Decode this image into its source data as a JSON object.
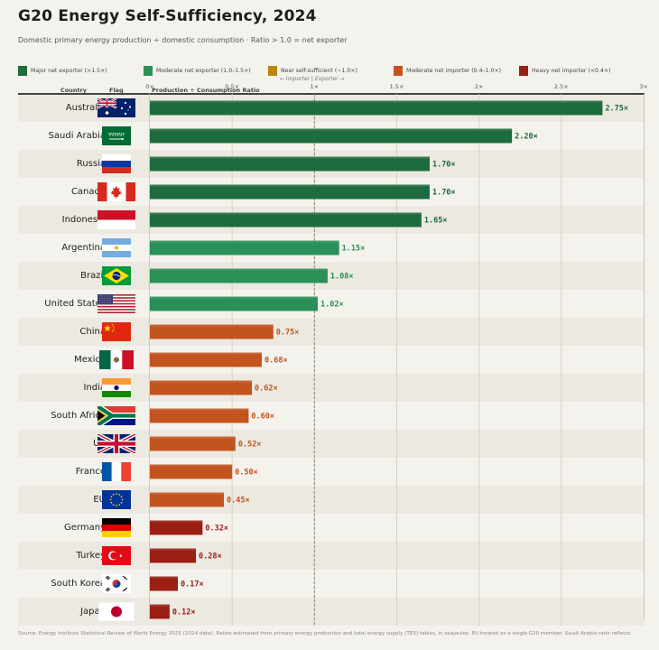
{
  "header": {
    "title": "G20 Energy Self-Sufficiency, 2024",
    "subtitle": "Domestic primary energy production ÷ domestic consumption  ·  Ratio > 1.0 = net exporter"
  },
  "legend": [
    {
      "label": "Major net exporter (>1.5×)",
      "color": "#1e6b3e"
    },
    {
      "label": "Moderate net exporter (1.0–1.5×)",
      "color": "#2a9057"
    },
    {
      "label": "Near self-sufficient (~1.0×)",
      "color": "#b8860b"
    },
    {
      "label": "Moderate net importer (0.4–1.0×)",
      "color": "#c2541f"
    },
    {
      "label": "Heavy net importer (<0.4×)",
      "color": "#9a1f15"
    }
  ],
  "hint": "← Importer  |  Exporter →",
  "columns": {
    "country": "Country",
    "flag": "Flag",
    "ratio": "Production ÷ Consumption Ratio"
  },
  "chart_data": {
    "type": "bar",
    "orientation": "horizontal",
    "title": "G20 Energy Self-Sufficiency, 2024",
    "xlabel": "Production ÷ Consumption Ratio",
    "xlim": [
      0,
      3
    ],
    "ticks": [
      {
        "value": 0,
        "label": "0×"
      },
      {
        "value": 0.5,
        "label": "0.5×"
      },
      {
        "value": 1,
        "label": "1×"
      },
      {
        "value": 1.5,
        "label": "1.5×"
      },
      {
        "value": 2,
        "label": "2×"
      },
      {
        "value": 2.5,
        "label": "2.5×"
      },
      {
        "value": 3,
        "label": "3×"
      }
    ],
    "reference_line": 1.0,
    "categories": [
      "Australia",
      "Saudi Arabia",
      "Russia",
      "Canada",
      "Indonesia",
      "Argentina",
      "Brazil",
      "United States",
      "China",
      "Mexico",
      "India",
      "South Africa",
      "UK",
      "France",
      "EU",
      "Germany",
      "Turkey",
      "South Korea",
      "Japan"
    ],
    "values": [
      2.75,
      2.2,
      1.7,
      1.7,
      1.65,
      1.15,
      1.08,
      1.02,
      0.75,
      0.68,
      0.62,
      0.6,
      0.52,
      0.5,
      0.45,
      0.32,
      0.28,
      0.17,
      0.12
    ],
    "labels": [
      "2.75×",
      "2.20×",
      "1.70×",
      "1.70×",
      "1.65×",
      "1.15×",
      "1.08×",
      "1.02×",
      "0.75×",
      "0.68×",
      "0.62×",
      "0.60×",
      "0.52×",
      "0.50×",
      "0.45×",
      "0.32×",
      "0.28×",
      "0.17×",
      "0.12×"
    ],
    "bar_colors": [
      "#1e6b3e",
      "#1e6b3e",
      "#1e6b3e",
      "#1e6b3e",
      "#1e6b3e",
      "#2a9057",
      "#2a9057",
      "#2a9057",
      "#c2541f",
      "#c2541f",
      "#c2541f",
      "#c2541f",
      "#c2541f",
      "#c2541f",
      "#c2541f",
      "#9a1f15",
      "#9a1f15",
      "#9a1f15",
      "#9a1f15"
    ],
    "label_colors": [
      "#1e6b3e",
      "#1e6b3e",
      "#1e6b3e",
      "#1e6b3e",
      "#1e6b3e",
      "#2a9057",
      "#2a9057",
      "#2a9057",
      "#c2541f",
      "#c2541f",
      "#c2541f",
      "#c2541f",
      "#c2541f",
      "#c2541f",
      "#c2541f",
      "#9a1f15",
      "#9a1f15",
      "#9a1f15",
      "#9a1f15"
    ]
  },
  "flags": [
    "australia-flag-icon",
    "saudi-arabia-flag-icon",
    "russia-flag-icon",
    "canada-flag-icon",
    "indonesia-flag-icon",
    "argentina-flag-icon",
    "brazil-flag-icon",
    "united-states-flag-icon",
    "china-flag-icon",
    "mexico-flag-icon",
    "india-flag-icon",
    "south-africa-flag-icon",
    "uk-flag-icon",
    "france-flag-icon",
    "eu-flag-icon",
    "germany-flag-icon",
    "turkey-flag-icon",
    "south-korea-flag-icon",
    "japan-flag-icon"
  ],
  "source": "Source: Energy Institute Statistical Review of World Energy 2025 (2024 data).  Ratios estimated from primary energy production and total energy supply (TES) tables, in exajoules.  EU treated as a single G20 member.  Saudi Arabia ratio reflects"
}
